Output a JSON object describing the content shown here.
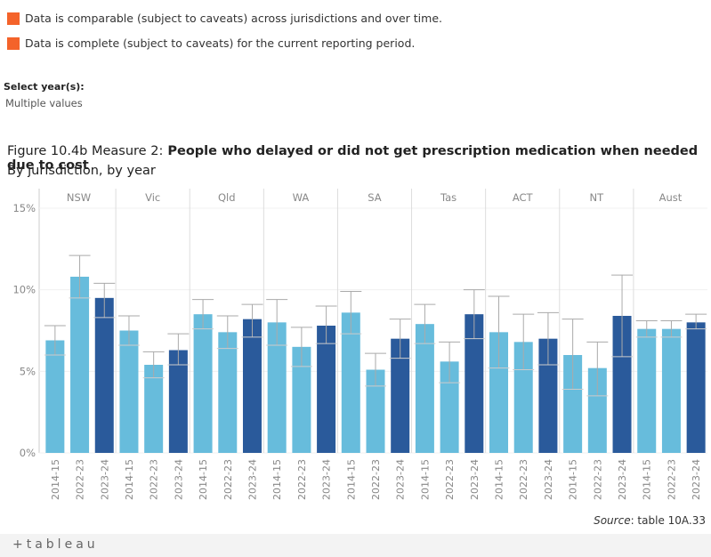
{
  "notes": [
    "Data is comparable (subject to caveats) across jurisdictions and over time.",
    "Data is complete (subject to caveats) for the current reporting period."
  ],
  "filter": {
    "label": "Select year(s):",
    "value": "Multiple values"
  },
  "brand": "+tableau",
  "source": {
    "label": "Source",
    "text": ": table 10A.33"
  },
  "chart_data": {
    "type": "bar",
    "title": "Figure 10.4b Measure 2:",
    "title_bold": " People who delayed or did not get prescription medication when needed due to cost",
    "subtitle": "By jurisdiction, by year",
    "categories": [
      "NSW",
      "Vic",
      "Qld",
      "WA",
      "SA",
      "Tas",
      "ACT",
      "NT",
      "Aust"
    ],
    "series": [
      {
        "name": "2014-15",
        "color": "#67bcdc",
        "values": [
          6.9,
          7.5,
          8.5,
          8.0,
          8.6,
          7.9,
          7.4,
          6.0,
          7.6
        ],
        "lower": [
          6.0,
          6.6,
          7.6,
          6.6,
          7.3,
          6.7,
          5.2,
          3.9,
          7.1
        ],
        "upper": [
          7.8,
          8.4,
          9.4,
          9.4,
          9.9,
          9.1,
          9.6,
          8.2,
          8.1
        ]
      },
      {
        "name": "2022-23",
        "color": "#67bcdc",
        "values": [
          10.8,
          5.4,
          7.4,
          6.5,
          5.1,
          5.6,
          6.8,
          5.2,
          7.6
        ],
        "lower": [
          9.5,
          4.6,
          6.4,
          5.3,
          4.1,
          4.3,
          5.1,
          3.5,
          7.1
        ],
        "upper": [
          12.1,
          6.2,
          8.4,
          7.7,
          6.1,
          6.8,
          8.5,
          6.8,
          8.1
        ]
      },
      {
        "name": "2023-24",
        "color": "#2a5a9b",
        "values": [
          9.5,
          6.3,
          8.2,
          7.8,
          7.0,
          8.5,
          7.0,
          8.4,
          8.0
        ],
        "lower": [
          8.3,
          5.4,
          7.1,
          6.7,
          5.8,
          7.0,
          5.4,
          5.9,
          7.6
        ],
        "upper": [
          10.4,
          7.3,
          9.1,
          9.0,
          8.2,
          10.0,
          8.6,
          10.9,
          8.5
        ]
      }
    ],
    "ylim": [
      0,
      15
    ],
    "yticks": [
      {
        "value": 0,
        "label": "0%"
      },
      {
        "value": 5,
        "label": "5%"
      },
      {
        "value": 10,
        "label": "10%"
      },
      {
        "value": 15,
        "label": "15%"
      }
    ],
    "grid": true
  }
}
